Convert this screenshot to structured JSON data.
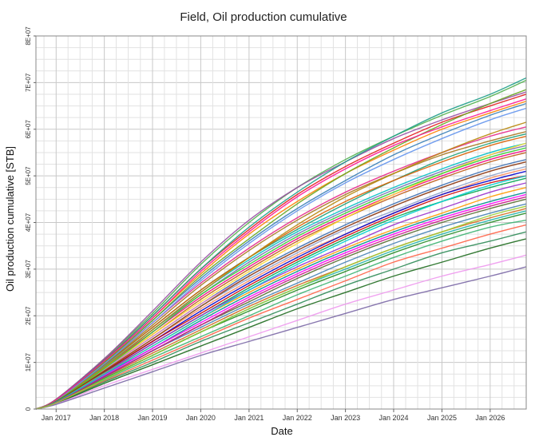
{
  "chart_data": {
    "type": "line",
    "title": "Field, Oil production cumulative",
    "xlabel": "Date",
    "ylabel": "Oil production cumulative [STB]",
    "x_range": [
      "2016-08-01",
      "2026-10-01"
    ],
    "ylim": [
      0,
      80000000
    ],
    "grid": true,
    "legend": "none",
    "x_ticks": [
      {
        "date": "2017-01-01",
        "label": "Jan 2017"
      },
      {
        "date": "2018-01-01",
        "label": "Jan 2018"
      },
      {
        "date": "2019-01-01",
        "label": "Jan 2019"
      },
      {
        "date": "2020-01-01",
        "label": "Jan 2020"
      },
      {
        "date": "2021-01-01",
        "label": "Jan 2021"
      },
      {
        "date": "2022-01-01",
        "label": "Jan 2022"
      },
      {
        "date": "2023-01-01",
        "label": "Jan 2023"
      },
      {
        "date": "2024-01-01",
        "label": "Jan 2024"
      },
      {
        "date": "2025-01-01",
        "label": "Jan 2025"
      },
      {
        "date": "2026-01-01",
        "label": "Jan 2026"
      }
    ],
    "y_ticks": [
      {
        "value": 0,
        "label": "0"
      },
      {
        "value": 10000000,
        "label": "1E+07"
      },
      {
        "value": 20000000,
        "label": "2E+07"
      },
      {
        "value": 30000000,
        "label": "3E+07"
      },
      {
        "value": 40000000,
        "label": "4E+07"
      },
      {
        "value": 50000000,
        "label": "5E+07"
      },
      {
        "value": 60000000,
        "label": "6E+07"
      },
      {
        "value": 70000000,
        "label": "7E+07"
      },
      {
        "value": 80000000,
        "label": "8E+07"
      }
    ],
    "series_dates": [
      "2016-08-01",
      "2017-01-01",
      "2018-01-01",
      "2019-01-01",
      "2020-01-01",
      "2021-01-01",
      "2022-01-01",
      "2023-01-01",
      "2024-01-01",
      "2025-01-01",
      "2026-01-01",
      "2026-10-01"
    ],
    "series": [
      {
        "color": "#e41a1c",
        "values": [
          0,
          2000000,
          10500000,
          20000000,
          30000000,
          38500000,
          46000000,
          52000000,
          57000000,
          61500000,
          65000000,
          67500000
        ]
      },
      {
        "color": "#377eb8",
        "values": [
          0,
          2000000,
          10000000,
          19000000,
          28000000,
          36000000,
          43000000,
          49000000,
          54500000,
          59000000,
          63000000,
          65500000
        ]
      },
      {
        "color": "#4daf4a",
        "values": [
          0,
          2100000,
          10800000,
          20500000,
          31000000,
          40000000,
          47500000,
          53500000,
          58500000,
          63000000,
          67000000,
          70500000
        ]
      },
      {
        "color": "#984ea3",
        "values": [
          0,
          2100000,
          10800000,
          21000000,
          31500000,
          40500000,
          47500000,
          53000000,
          58000000,
          62000000,
          65500000,
          68000000
        ]
      },
      {
        "color": "#ff7f00",
        "values": [
          0,
          2000000,
          10200000,
          19500000,
          29000000,
          37500000,
          44500000,
          50500000,
          55500000,
          60000000,
          63500000,
          66000000
        ]
      },
      {
        "color": "#1f9e89",
        "values": [
          0,
          2000000,
          10400000,
          20000000,
          30000000,
          39000000,
          46500000,
          53000000,
          58500000,
          63500000,
          67500000,
          71000000
        ]
      },
      {
        "color": "#e7298a",
        "values": [
          0,
          1900000,
          9800000,
          18500000,
          27000000,
          34500000,
          41000000,
          46500000,
          51000000,
          55000000,
          58500000,
          60500000
        ]
      },
      {
        "color": "#66a61e",
        "values": [
          0,
          2000000,
          10000000,
          19000000,
          28500000,
          36500000,
          44000000,
          50500000,
          56000000,
          61000000,
          65500000,
          68500000
        ]
      },
      {
        "color": "#a6761d",
        "values": [
          0,
          1900000,
          9600000,
          18000000,
          26500000,
          34000000,
          40500000,
          46000000,
          50500000,
          54500000,
          57500000,
          59500000
        ]
      },
      {
        "color": "#1b9e77",
        "values": [
          0,
          1900000,
          9500000,
          17500000,
          25500000,
          32500000,
          38500000,
          44000000,
          49000000,
          53500000,
          57000000,
          59000000
        ]
      },
      {
        "color": "#d95f02",
        "values": [
          0,
          1900000,
          9400000,
          17500000,
          25500000,
          32500000,
          39000000,
          44500000,
          49000000,
          53000000,
          56500000,
          58500000
        ]
      },
      {
        "color": "#7570b3",
        "values": [
          0,
          1800000,
          9000000,
          17000000,
          24500000,
          31500000,
          37500000,
          42500000,
          47000000,
          51000000,
          54500000,
          56500000
        ]
      },
      {
        "color": "#00bfc4",
        "values": [
          0,
          1800000,
          9200000,
          17000000,
          25000000,
          32000000,
          38000000,
          43000000,
          47500000,
          51500000,
          55000000,
          57000000
        ]
      },
      {
        "color": "#f0027f",
        "values": [
          0,
          1800000,
          9000000,
          16500000,
          24000000,
          30500000,
          36500000,
          41500000,
          46000000,
          50000000,
          53500000,
          55500000
        ]
      },
      {
        "color": "#bf5b17",
        "values": [
          0,
          1800000,
          8800000,
          16000000,
          23500000,
          30000000,
          36000000,
          41000000,
          45500000,
          49500000,
          53000000,
          55000000
        ]
      },
      {
        "color": "#386cb0",
        "values": [
          0,
          1700000,
          8600000,
          15500000,
          22500000,
          29000000,
          34500000,
          39500000,
          44000000,
          48000000,
          51500000,
          53500000
        ]
      },
      {
        "color": "#ffd92f",
        "values": [
          0,
          1800000,
          8800000,
          16000000,
          23000000,
          29500000,
          35500000,
          41000000,
          46000000,
          50500000,
          54500000,
          57000000
        ]
      },
      {
        "color": "#e78ac3",
        "values": [
          0,
          1700000,
          8500000,
          15500000,
          22500000,
          28500000,
          34000000,
          39000000,
          43500000,
          47500000,
          51000000,
          53000000
        ]
      },
      {
        "color": "#8da0cb",
        "values": [
          0,
          1700000,
          8400000,
          15000000,
          22000000,
          28000000,
          33500000,
          38500000,
          42500000,
          46500000,
          50000000,
          52000000
        ]
      },
      {
        "color": "#fc8d62",
        "values": [
          0,
          1700000,
          8300000,
          15000000,
          21500000,
          27500000,
          33000000,
          37500000,
          42000000,
          46000000,
          49500000,
          51500000
        ]
      },
      {
        "color": "#0000cc",
        "values": [
          0,
          1600000,
          8000000,
          14500000,
          21000000,
          27000000,
          32500000,
          37500000,
          42000000,
          46000000,
          49000000,
          51000000
        ]
      },
      {
        "color": "#cc0000",
        "values": [
          0,
          1600000,
          8000000,
          14500000,
          20500000,
          26500000,
          32000000,
          37000000,
          41500000,
          45500000,
          48500000,
          50000000
        ]
      },
      {
        "color": "#00a651",
        "values": [
          0,
          1600000,
          7800000,
          14000000,
          20000000,
          26000000,
          31500000,
          36500000,
          41000000,
          44500000,
          47500000,
          49500000
        ]
      },
      {
        "color": "#9932cc",
        "values": [
          0,
          1600000,
          7700000,
          14000000,
          20000000,
          25500000,
          30500000,
          35000000,
          39500000,
          43000000,
          46500000,
          48500000
        ]
      },
      {
        "color": "#ff9900",
        "values": [
          0,
          1600000,
          7600000,
          13500000,
          19500000,
          25000000,
          30000000,
          34500000,
          38500000,
          42000000,
          45500000,
          47500000
        ]
      },
      {
        "color": "#008b8b",
        "values": [
          0,
          1500000,
          7400000,
          13000000,
          19000000,
          24500000,
          29500000,
          34000000,
          38000000,
          41500000,
          44500000,
          46500000
        ]
      },
      {
        "color": "#ff00ff",
        "values": [
          0,
          1500000,
          7200000,
          13000000,
          18500000,
          24000000,
          29000000,
          33500000,
          37500000,
          41000000,
          44000000,
          46000000
        ]
      },
      {
        "color": "#556b2f",
        "values": [
          0,
          1500000,
          7000000,
          12500000,
          18000000,
          23000000,
          28000000,
          32500000,
          36500000,
          40000000,
          43000000,
          45000000
        ]
      },
      {
        "color": "#4682b4",
        "values": [
          0,
          1500000,
          7000000,
          12500000,
          17500000,
          22500000,
          27000000,
          31500000,
          35500000,
          39000000,
          42000000,
          44000000
        ]
      },
      {
        "color": "#d2691e",
        "values": [
          0,
          1400000,
          6800000,
          12000000,
          17000000,
          22000000,
          26500000,
          30500000,
          34500000,
          38000000,
          41000000,
          43000000
        ]
      },
      {
        "color": "#20b2aa",
        "values": [
          0,
          1400000,
          6600000,
          11500000,
          16500000,
          21500000,
          26000000,
          30000000,
          34000000,
          37500000,
          40500000,
          42500000
        ]
      },
      {
        "color": "#228b22",
        "values": [
          0,
          1400000,
          6500000,
          11500000,
          16500000,
          21000000,
          25500000,
          29500000,
          33500000,
          37000000,
          40000000,
          42000000
        ]
      },
      {
        "color": "#3cb371",
        "values": [
          0,
          1300000,
          6200000,
          11000000,
          15500000,
          20000000,
          24500000,
          28500000,
          32500000,
          36000000,
          39000000,
          40500000
        ]
      },
      {
        "color": "#ff6347",
        "values": [
          0,
          1300000,
          6000000,
          10500000,
          15000000,
          19500000,
          23500000,
          27500000,
          31500000,
          34500000,
          37500000,
          39500000
        ]
      },
      {
        "color": "#2e8b57",
        "values": [
          0,
          1200000,
          5800000,
          10000000,
          14500000,
          18500000,
          22500000,
          26500000,
          30000000,
          33500000,
          36000000,
          38000000
        ]
      },
      {
        "color": "#1e6b1e",
        "values": [
          0,
          1200000,
          5500000,
          9500000,
          13500000,
          17500000,
          21500000,
          25000000,
          28500000,
          31500000,
          34500000,
          36500000
        ]
      },
      {
        "color": "#ee99ee",
        "values": [
          0,
          1100000,
          5000000,
          8500000,
          12000000,
          15500000,
          19000000,
          22500000,
          25500000,
          28500000,
          31000000,
          33000000
        ]
      },
      {
        "color": "#7b68a6",
        "values": [
          0,
          1000000,
          4500000,
          8000000,
          11500000,
          14500000,
          17500000,
          20500000,
          23500000,
          26000000,
          28500000,
          30500000
        ]
      },
      {
        "color": "#b8860b",
        "values": [
          0,
          1800000,
          9000000,
          17000000,
          25000000,
          32500000,
          39500000,
          45500000,
          50500000,
          55000000,
          59000000,
          61500000
        ]
      },
      {
        "color": "#6495ed",
        "values": [
          0,
          1900000,
          9700000,
          18500000,
          27500000,
          35500000,
          42500000,
          48500000,
          53500000,
          58000000,
          62000000,
          64500000
        ]
      },
      {
        "color": "#ff1493",
        "values": [
          0,
          2000000,
          10300000,
          19500000,
          29500000,
          38000000,
          45500000,
          51500000,
          56500000,
          60500000,
          64000000,
          66500000
        ]
      },
      {
        "color": "#32cd32",
        "values": [
          0,
          1700000,
          8700000,
          16500000,
          24500000,
          31000000,
          37000000,
          42000000,
          46500000,
          50500000,
          54000000,
          56000000
        ]
      },
      {
        "color": "#8b4513",
        "values": [
          0,
          1600000,
          8200000,
          15000000,
          22000000,
          28500000,
          34000000,
          39000000,
          43500000,
          47500000,
          51000000,
          53000000
        ]
      },
      {
        "color": "#00ced1",
        "values": [
          0,
          1500000,
          7500000,
          13500000,
          19500000,
          25500000,
          31000000,
          36000000,
          40500000,
          44500000,
          48000000,
          50000000
        ]
      },
      {
        "color": "#c71585",
        "values": [
          0,
          1400000,
          6900000,
          12500000,
          18000000,
          23500000,
          28500000,
          33000000,
          37000000,
          40500000,
          43500000,
          45500000
        ]
      },
      {
        "color": "#9acd32",
        "values": [
          0,
          1300000,
          6400000,
          11500000,
          16500000,
          21500000,
          26000000,
          30500000,
          34500000,
          38000000,
          41500000,
          43500000
        ]
      }
    ]
  }
}
